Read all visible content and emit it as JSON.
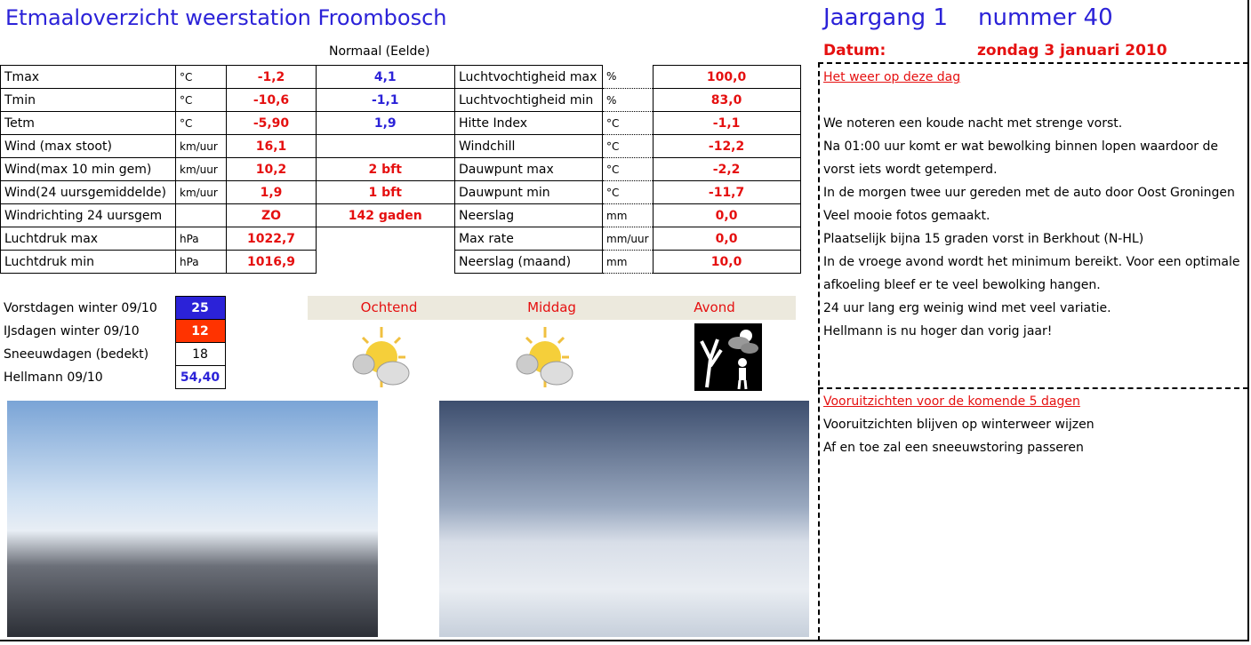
{
  "header": {
    "title": "Etmaaloverzicht weerstation Froombosch",
    "normal_label": "Normaal (Eelde)",
    "jaargang": "Jaargang 1",
    "nummer": "nummer 40",
    "datum_label": "Datum:",
    "datum": "zondag 3 januari 2010"
  },
  "left_table": [
    {
      "label": "Tmax",
      "unit": "°C",
      "value": "-1,2",
      "normal": "4,1"
    },
    {
      "label": "Tmin",
      "unit": "°C",
      "value": "-10,6",
      "normal": "-1,1"
    },
    {
      "label": "Tetm",
      "unit": "°C",
      "value": "-5,90",
      "normal": "1,9"
    },
    {
      "label": "Wind (max stoot)",
      "unit": "km/uur",
      "value": "16,1",
      "normal": ""
    },
    {
      "label": "Wind(max 10 min gem)",
      "unit": "km/uur",
      "value": "10,2",
      "normal": "2 bft"
    },
    {
      "label": "Wind(24 uursgemiddelde)",
      "unit": "km/uur",
      "value": "1,9",
      "normal": "1 bft"
    },
    {
      "label": "Windrichting 24 uursgem",
      "unit": "",
      "value": "ZO",
      "normal": "142 gaden"
    },
    {
      "label": "Luchtdruk max",
      "unit": "hPa",
      "value": "1022,7",
      "normal": ""
    },
    {
      "label": "Luchtdruk min",
      "unit": "hPa",
      "value": "1016,9",
      "normal": ""
    }
  ],
  "right_table": [
    {
      "label": "Luchtvochtigheid max",
      "unit": "%",
      "value": "100,0"
    },
    {
      "label": "Luchtvochtigheid min",
      "unit": "%",
      "value": "83,0"
    },
    {
      "label": "Hitte Index",
      "unit": "°C",
      "value": "-1,1"
    },
    {
      "label": "Windchill",
      "unit": "°C",
      "value": "-12,2"
    },
    {
      "label": "Dauwpunt max",
      "unit": "°C",
      "value": "-2,2"
    },
    {
      "label": "Dauwpunt min",
      "unit": "°C",
      "value": "-11,7"
    },
    {
      "label": "Neerslag",
      "unit": "mm",
      "value": "0,0"
    },
    {
      "label": "Max rate",
      "unit": "mm/uur",
      "value": "0,0"
    },
    {
      "label": "Neerslag (maand)",
      "unit": "mm",
      "value": "10,0"
    }
  ],
  "stats": [
    {
      "label": "Vorstdagen winter 09/10",
      "value": "25",
      "bg": "#2b22d8",
      "color": "#ffffff"
    },
    {
      "label": "IJsdagen winter 09/10",
      "value": "12",
      "bg": "#ff3300",
      "color": "#ffffff"
    },
    {
      "label": "Sneeuwdagen (bedekt)",
      "value": "18",
      "bg": "#ffffff",
      "color": "#000000"
    },
    {
      "label": "Hellmann 09/10",
      "value": "54,40",
      "bg": "#ffffff",
      "color": "#2b22d8"
    }
  ],
  "dayparts": [
    {
      "label": "Ochtend",
      "icon": "partly-cloudy-icon"
    },
    {
      "label": "Middag",
      "icon": "partly-cloudy-icon"
    },
    {
      "label": "Avond",
      "icon": "windy-night-icon"
    }
  ],
  "weather_today": {
    "heading": "Het weer op deze dag",
    "lines": [
      "",
      "We noteren een koude nacht met strenge vorst.",
      "Na 01:00 uur komt er wat bewolking binnen lopen waardoor de",
      "vorst iets wordt getemperd.",
      "In de morgen twee uur gereden met de auto door Oost Groningen",
      "Veel mooie fotos gemaakt.",
      "Plaatselijk bijna 15 graden vorst in Berkhout (N-HL)",
      "In de vroege avond wordt het minimum bereikt. Voor een optimale",
      "afkoeling bleef er te veel bewolking hangen.",
      "24 uur lang erg weinig wind met veel variatie.",
      "Hellmann is nu hoger dan vorig jaar!"
    ]
  },
  "outlook": {
    "heading": "Vooruitzichten voor de komende 5 dagen",
    "lines": [
      "Vooruitzichten blijven op winterweer wijzen",
      "Af en toe zal een sneeuwstoring passeren"
    ]
  },
  "colors": {
    "blue": "#2b22d8",
    "red": "#e51010"
  }
}
